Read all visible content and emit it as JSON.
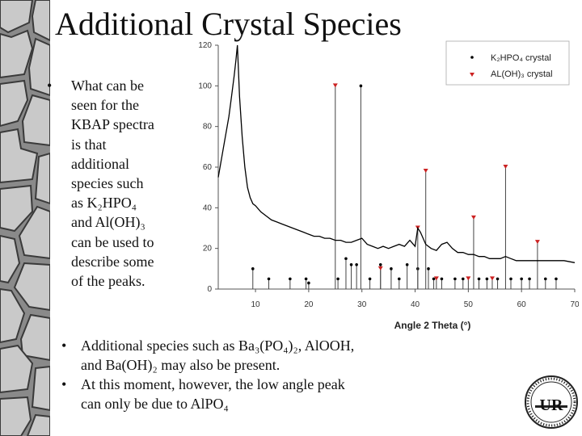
{
  "slide": {
    "title": "Additional Crystal Species",
    "bullet1": [
      "What can be",
      "seen for the",
      "KBAP spectra",
      "is that",
      "additional",
      "species such",
      "as K₂HPO₄",
      "and Al(OH)₃",
      "can be used to",
      "describe some",
      "of the peaks."
    ],
    "bullets2": [
      {
        "line1": "Additional species such as Ba₃(PO₄)₂, AlOOH,",
        "line2": "and Ba(OH)₂ may also be present."
      },
      {
        "line1": "At this moment, however, the low angle peak",
        "line2": "can only be due to AlPO₄"
      }
    ],
    "bullet_symbol": "•",
    "seal_text": "UR"
  },
  "chart_data": {
    "type": "line",
    "xlabel": "Angle 2 Theta (°)",
    "ylabel": "",
    "xlim": [
      3,
      70
    ],
    "ylim": [
      0,
      120
    ],
    "xticks": [
      10,
      20,
      30,
      40,
      50,
      60,
      70
    ],
    "yticks": [
      0,
      20,
      40,
      60,
      80,
      100,
      120
    ],
    "colors": {
      "spectrum": "#000000",
      "k2hpo4": "#000000",
      "aloh3": "#cc2222"
    },
    "legend_position": "top-right",
    "legend": [
      {
        "label": "K₂HPO₄ crystal",
        "marker": "dot",
        "color": "#000000"
      },
      {
        "label": "AL(OH)₃ crystal",
        "marker": "triangle",
        "color": "#cc2222"
      }
    ],
    "spectrum": {
      "x": [
        3,
        4,
        5,
        5.5,
        6,
        6.3,
        6.6,
        7,
        7.5,
        8,
        8.5,
        9,
        9.5,
        10,
        11,
        12,
        13,
        14,
        15,
        16,
        17,
        18,
        19,
        20,
        21,
        22,
        23,
        24,
        25,
        26,
        27,
        28,
        29,
        30,
        31,
        32,
        33,
        34,
        35,
        36,
        37,
        38,
        39,
        40,
        40.5,
        41,
        42,
        43,
        44,
        45,
        46,
        47,
        48,
        49,
        50,
        51,
        52,
        53,
        54,
        55,
        56,
        57,
        58,
        59,
        60,
        62,
        64,
        66,
        68,
        70
      ],
      "y": [
        55,
        70,
        85,
        95,
        105,
        112,
        120,
        95,
        75,
        60,
        50,
        45,
        42,
        41,
        38,
        36,
        34,
        33,
        32,
        31,
        30,
        29,
        28,
        27,
        26,
        26,
        25,
        25,
        24,
        24,
        23,
        23,
        24,
        25,
        22,
        21,
        20,
        21,
        20,
        21,
        22,
        21,
        24,
        21,
        30,
        28,
        22,
        20,
        19,
        22,
        23,
        20,
        18,
        18,
        17,
        17,
        16,
        16,
        15,
        15,
        15,
        16,
        15,
        14,
        14,
        14,
        14,
        14,
        14,
        13
      ]
    },
    "peaks_k2hpo4": [
      {
        "x": 9.5,
        "y": 10
      },
      {
        "x": 12.5,
        "y": 5
      },
      {
        "x": 16.5,
        "y": 5
      },
      {
        "x": 19.5,
        "y": 5
      },
      {
        "x": 20,
        "y": 3
      },
      {
        "x": 25.5,
        "y": 5
      },
      {
        "x": 27,
        "y": 15
      },
      {
        "x": 28,
        "y": 12
      },
      {
        "x": 29,
        "y": 12
      },
      {
        "x": 29.8,
        "y": 100
      },
      {
        "x": 31.5,
        "y": 5
      },
      {
        "x": 33.5,
        "y": 12
      },
      {
        "x": 35.5,
        "y": 10
      },
      {
        "x": 37,
        "y": 5
      },
      {
        "x": 38.5,
        "y": 12
      },
      {
        "x": 40.5,
        "y": 10
      },
      {
        "x": 42.5,
        "y": 10
      },
      {
        "x": 43.5,
        "y": 5
      },
      {
        "x": 45,
        "y": 5
      },
      {
        "x": 47.5,
        "y": 5
      },
      {
        "x": 49,
        "y": 5
      },
      {
        "x": 52,
        "y": 5
      },
      {
        "x": 53.5,
        "y": 5
      },
      {
        "x": 55.5,
        "y": 5
      },
      {
        "x": 58,
        "y": 5
      },
      {
        "x": 60,
        "y": 5
      },
      {
        "x": 61.5,
        "y": 5
      },
      {
        "x": 64.5,
        "y": 5
      },
      {
        "x": 66.5,
        "y": 5
      }
    ],
    "peaks_aloh3": [
      {
        "x": 25,
        "y": 100
      },
      {
        "x": 33.5,
        "y": 10
      },
      {
        "x": 40.5,
        "y": 30
      },
      {
        "x": 42,
        "y": 58
      },
      {
        "x": 44,
        "y": 5
      },
      {
        "x": 50,
        "y": 5
      },
      {
        "x": 51,
        "y": 35
      },
      {
        "x": 54.5,
        "y": 5
      },
      {
        "x": 57,
        "y": 60
      },
      {
        "x": 63,
        "y": 23
      }
    ]
  }
}
